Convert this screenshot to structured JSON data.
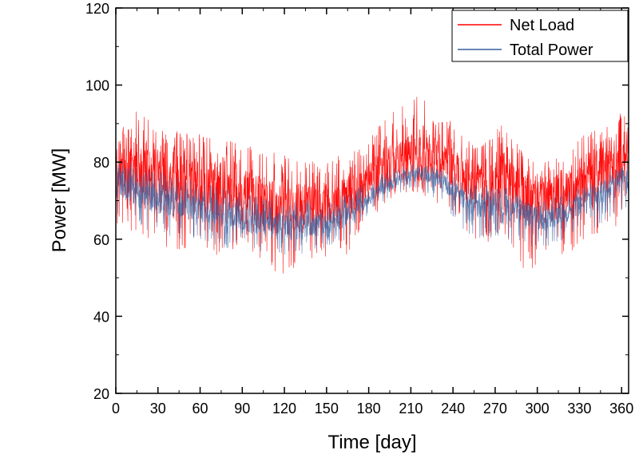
{
  "chart_data": {
    "type": "line",
    "xlabel": "Time [day]",
    "ylabel": "Power [MW]",
    "xlim": [
      0,
      365
    ],
    "ylim": [
      20,
      120
    ],
    "xticks": [
      0,
      30,
      60,
      90,
      120,
      150,
      180,
      210,
      240,
      270,
      300,
      330,
      360
    ],
    "yticks": [
      20,
      40,
      60,
      80,
      100,
      120
    ],
    "grid": false,
    "legend_position": "top-right",
    "series": [
      {
        "name": "Net Load",
        "color": "#ff0000",
        "envelope_days": [
          0,
          10,
          20,
          30,
          45,
          60,
          75,
          90,
          105,
          120,
          135,
          150,
          165,
          175,
          185,
          195,
          205,
          215,
          225,
          235,
          245,
          255,
          265,
          275,
          285,
          295,
          305,
          315,
          325,
          335,
          345,
          355,
          365
        ],
        "upper": [
          88,
          95,
          92,
          90,
          88,
          88,
          86,
          85,
          83,
          82,
          80,
          81,
          82,
          84,
          88,
          94,
          95,
          98,
          94,
          92,
          88,
          84,
          86,
          90,
          85,
          82,
          80,
          82,
          85,
          88,
          90,
          92,
          94
        ],
        "mean": [
          80,
          79,
          77,
          76,
          75,
          74,
          73,
          71,
          69,
          68,
          68,
          68,
          70,
          73,
          76,
          79,
          81,
          83,
          81,
          80,
          77,
          74,
          74,
          76,
          72,
          70,
          70,
          71,
          73,
          76,
          78,
          80,
          82
        ],
        "lower": [
          62,
          60,
          58,
          58,
          57,
          56,
          55,
          54,
          51,
          51,
          52,
          53,
          56,
          62,
          66,
          68,
          70,
          72,
          70,
          68,
          63,
          60,
          59,
          60,
          52,
          52,
          54,
          55,
          56,
          60,
          62,
          63,
          66
        ]
      },
      {
        "name": "Total Power",
        "color": "#3a5f9e",
        "envelope_days": [
          0,
          10,
          20,
          30,
          45,
          60,
          75,
          90,
          105,
          120,
          135,
          150,
          165,
          175,
          185,
          195,
          205,
          215,
          225,
          235,
          245,
          255,
          265,
          275,
          285,
          295,
          305,
          315,
          325,
          335,
          345,
          355,
          365
        ],
        "upper": [
          80,
          80,
          78,
          78,
          76,
          75,
          74,
          72,
          71,
          70,
          70,
          71,
          72,
          74,
          76,
          78,
          79,
          80,
          79,
          78,
          76,
          74,
          74,
          74,
          72,
          70,
          70,
          72,
          73,
          74,
          76,
          78,
          80
        ],
        "mean": [
          74,
          73,
          71,
          70,
          69,
          68,
          67,
          65,
          64,
          63,
          63,
          64,
          66,
          69,
          72,
          74,
          76,
          77,
          76,
          74,
          71,
          69,
          68,
          68,
          67,
          66,
          65,
          66,
          68,
          70,
          72,
          74,
          76
        ],
        "lower": [
          66,
          64,
          62,
          62,
          60,
          59,
          58,
          57,
          56,
          55,
          56,
          58,
          60,
          65,
          68,
          70,
          72,
          73,
          71,
          68,
          63,
          60,
          60,
          60,
          58,
          57,
          58,
          59,
          60,
          62,
          64,
          66,
          68
        ]
      }
    ]
  }
}
